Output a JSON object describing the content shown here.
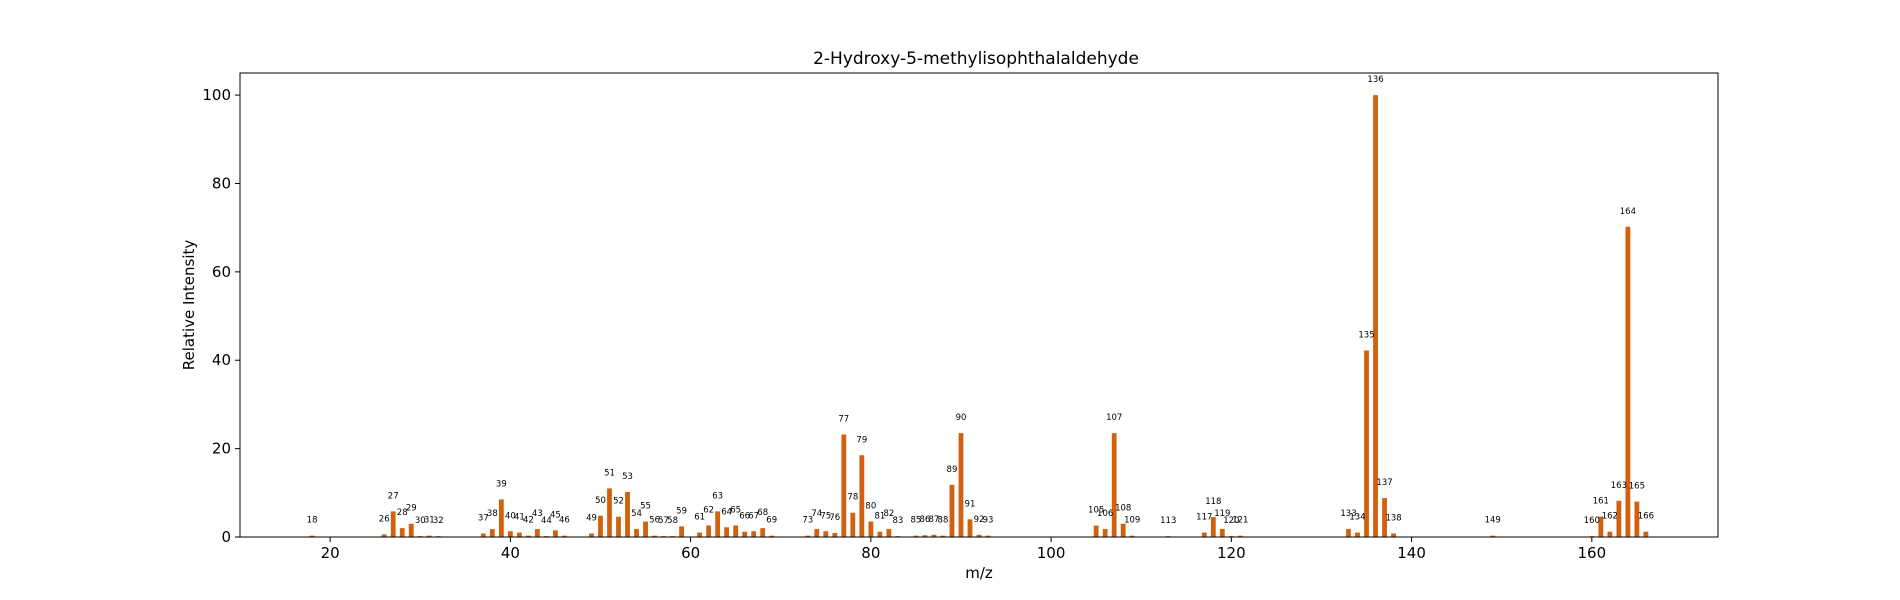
{
  "chart_data": {
    "type": "bar",
    "title": "2-Hydroxy-5-methylisophthalaldehyde",
    "xlabel": "m/z",
    "ylabel": "Relative Intensity",
    "xlim": [
      10,
      174
    ],
    "ylim": [
      0,
      105
    ],
    "xticks": [
      20,
      40,
      60,
      80,
      100,
      120,
      140,
      160
    ],
    "yticks": [
      0,
      20,
      40,
      60,
      80,
      100
    ],
    "grid": false,
    "bar_color": "#d2600c",
    "peaks": [
      {
        "mz": 18,
        "intensity": 0.3
      },
      {
        "mz": 26,
        "intensity": 0.6
      },
      {
        "mz": 27,
        "intensity": 5.8
      },
      {
        "mz": 28,
        "intensity": 2.0
      },
      {
        "mz": 29,
        "intensity": 3.0
      },
      {
        "mz": 30,
        "intensity": 0.2
      },
      {
        "mz": 31,
        "intensity": 0.3
      },
      {
        "mz": 32,
        "intensity": 0.2
      },
      {
        "mz": 37,
        "intensity": 0.8
      },
      {
        "mz": 38,
        "intensity": 1.8
      },
      {
        "mz": 39,
        "intensity": 8.5
      },
      {
        "mz": 40,
        "intensity": 1.3
      },
      {
        "mz": 41,
        "intensity": 1.0
      },
      {
        "mz": 42,
        "intensity": 0.3
      },
      {
        "mz": 43,
        "intensity": 1.8
      },
      {
        "mz": 44,
        "intensity": 0.2
      },
      {
        "mz": 45,
        "intensity": 1.5
      },
      {
        "mz": 46,
        "intensity": 0.3
      },
      {
        "mz": 49,
        "intensity": 0.8
      },
      {
        "mz": 50,
        "intensity": 4.8
      },
      {
        "mz": 51,
        "intensity": 11.0
      },
      {
        "mz": 52,
        "intensity": 4.6
      },
      {
        "mz": 53,
        "intensity": 10.2
      },
      {
        "mz": 54,
        "intensity": 1.8
      },
      {
        "mz": 55,
        "intensity": 3.5
      },
      {
        "mz": 56,
        "intensity": 0.3
      },
      {
        "mz": 57,
        "intensity": 0.2
      },
      {
        "mz": 58,
        "intensity": 0.2
      },
      {
        "mz": 59,
        "intensity": 2.4
      },
      {
        "mz": 61,
        "intensity": 1.0
      },
      {
        "mz": 62,
        "intensity": 2.6
      },
      {
        "mz": 63,
        "intensity": 5.8
      },
      {
        "mz": 64,
        "intensity": 2.2
      },
      {
        "mz": 65,
        "intensity": 2.6
      },
      {
        "mz": 66,
        "intensity": 1.2
      },
      {
        "mz": 67,
        "intensity": 1.3
      },
      {
        "mz": 68,
        "intensity": 2.0
      },
      {
        "mz": 69,
        "intensity": 0.3
      },
      {
        "mz": 73,
        "intensity": 0.3
      },
      {
        "mz": 74,
        "intensity": 1.8
      },
      {
        "mz": 75,
        "intensity": 1.3
      },
      {
        "mz": 76,
        "intensity": 0.9
      },
      {
        "mz": 77,
        "intensity": 23.2
      },
      {
        "mz": 78,
        "intensity": 5.5
      },
      {
        "mz": 79,
        "intensity": 18.5
      },
      {
        "mz": 80,
        "intensity": 3.5
      },
      {
        "mz": 81,
        "intensity": 1.2
      },
      {
        "mz": 82,
        "intensity": 1.8
      },
      {
        "mz": 83,
        "intensity": 0.2
      },
      {
        "mz": 85,
        "intensity": 0.3
      },
      {
        "mz": 86,
        "intensity": 0.4
      },
      {
        "mz": 87,
        "intensity": 0.5
      },
      {
        "mz": 88,
        "intensity": 0.3
      },
      {
        "mz": 89,
        "intensity": 11.8
      },
      {
        "mz": 90,
        "intensity": 23.5
      },
      {
        "mz": 91,
        "intensity": 4.0
      },
      {
        "mz": 92,
        "intensity": 0.5
      },
      {
        "mz": 93,
        "intensity": 0.3
      },
      {
        "mz": 105,
        "intensity": 2.6
      },
      {
        "mz": 106,
        "intensity": 1.8
      },
      {
        "mz": 107,
        "intensity": 23.5
      },
      {
        "mz": 108,
        "intensity": 3.0
      },
      {
        "mz": 109,
        "intensity": 0.3
      },
      {
        "mz": 113,
        "intensity": 0.2
      },
      {
        "mz": 117,
        "intensity": 1.0
      },
      {
        "mz": 118,
        "intensity": 4.5
      },
      {
        "mz": 119,
        "intensity": 1.8
      },
      {
        "mz": 120,
        "intensity": 0.2
      },
      {
        "mz": 121,
        "intensity": 0.3
      },
      {
        "mz": 133,
        "intensity": 1.8
      },
      {
        "mz": 134,
        "intensity": 1.0
      },
      {
        "mz": 135,
        "intensity": 42.2
      },
      {
        "mz": 136,
        "intensity": 100.0
      },
      {
        "mz": 137,
        "intensity": 8.8
      },
      {
        "mz": 138,
        "intensity": 0.8
      },
      {
        "mz": 149,
        "intensity": 0.3
      },
      {
        "mz": 160,
        "intensity": 0.2
      },
      {
        "mz": 161,
        "intensity": 4.6
      },
      {
        "mz": 162,
        "intensity": 1.2
      },
      {
        "mz": 163,
        "intensity": 8.2
      },
      {
        "mz": 164,
        "intensity": 70.2
      },
      {
        "mz": 165,
        "intensity": 8.0
      },
      {
        "mz": 166,
        "intensity": 1.2
      }
    ]
  }
}
